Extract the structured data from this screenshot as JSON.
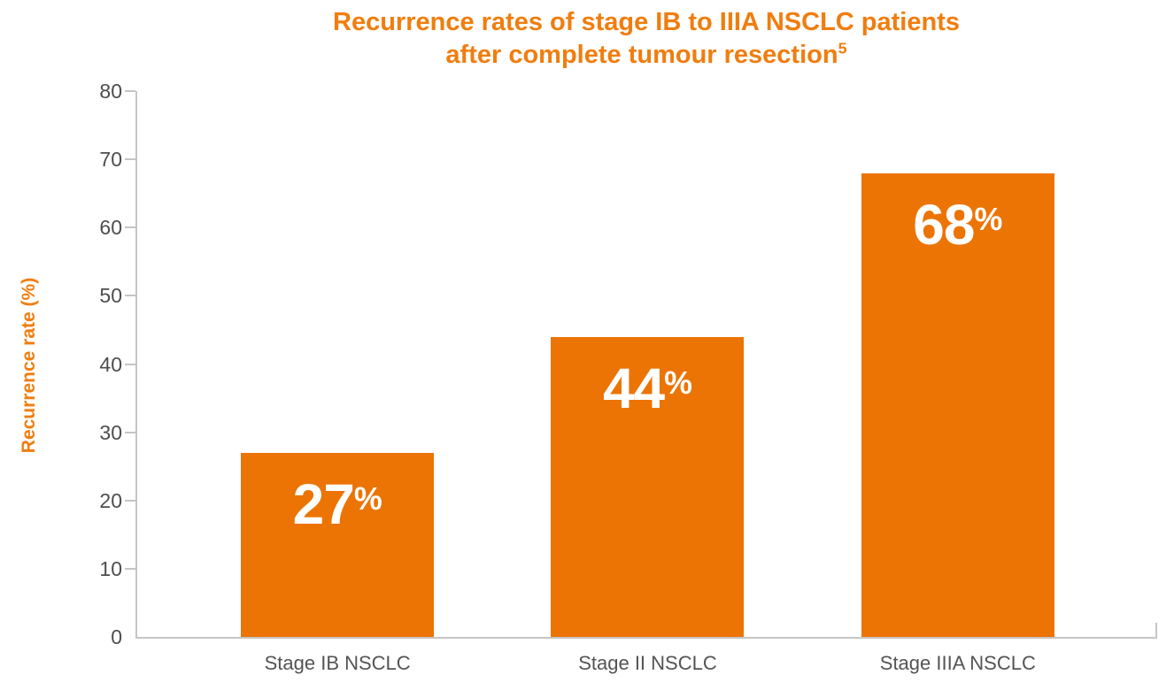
{
  "colors": {
    "bar_orange": "#EC7404",
    "title_orange": "#F07D0E",
    "axis_line_gray": "#C5C5C5",
    "tick_label_gray": "#4D4D4F",
    "category_label_gray": "#545456",
    "bar_label_white": "#FFFFFF"
  },
  "chart_data": {
    "type": "bar",
    "title": "Recurrence rates of stage IB to IIIA NSCLC patients after complete tumour resection⁵",
    "title_lines": [
      "Recurrence rates of stage IB to IIIA NSCLC patients",
      "after complete tumour resection"
    ],
    "title_footnote_marker": "5",
    "categories": [
      "Stage IB NSCLC",
      "Stage II NSCLC",
      "Stage IIIA NSCLC"
    ],
    "values": [
      27,
      44,
      68
    ],
    "bar_labels": [
      "27",
      "44",
      "68"
    ],
    "bar_label_unit": "%",
    "xlabel": "",
    "ylabel": "Recurrence rate (%)",
    "ylim": [
      0,
      80
    ],
    "yticks": [
      0,
      10,
      20,
      30,
      40,
      50,
      60,
      70,
      80
    ],
    "grid": false,
    "legend": false,
    "bar_color": "#EC7404"
  }
}
